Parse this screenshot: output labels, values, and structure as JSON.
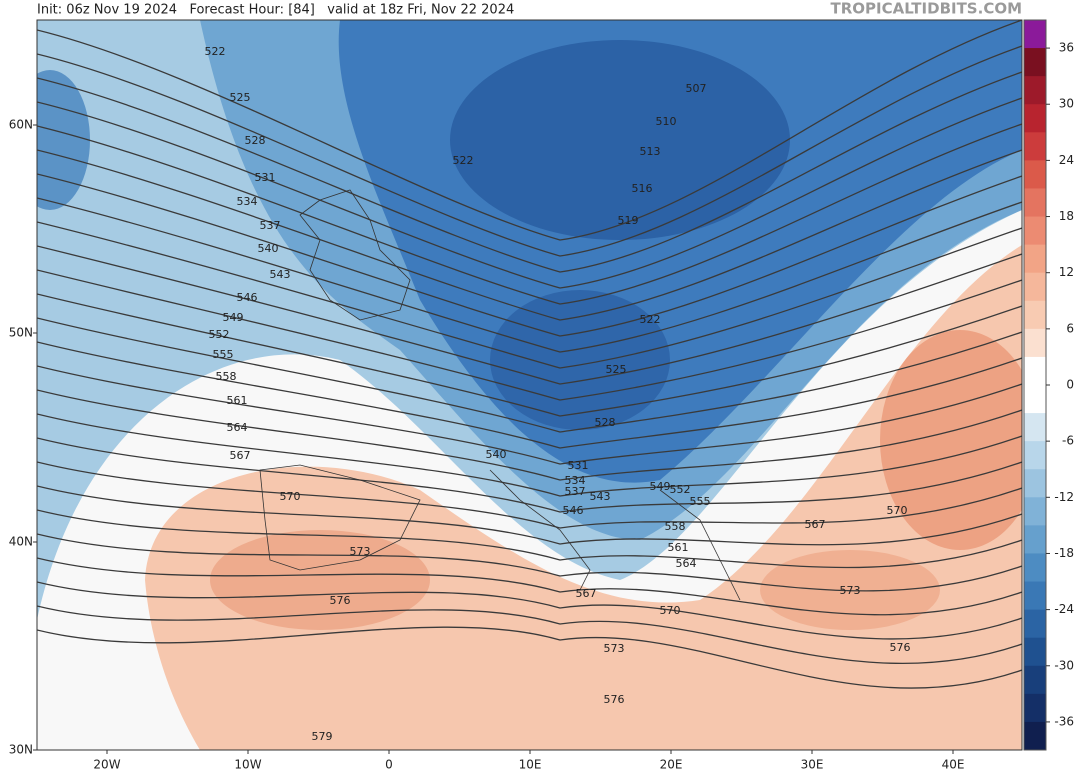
{
  "header": {
    "info": "Init: 06z Nov 19 2024   Forecast Hour: [84]   valid at 18z Fri, Nov 22 2024",
    "watermark": "TROPICALTIDBITS.COM"
  },
  "map": {
    "latitude_labels": [
      "60N",
      "50N",
      "40N",
      "30N"
    ],
    "longitude_labels": [
      "20W",
      "10W",
      "0",
      "10E",
      "20E",
      "30E",
      "40E"
    ],
    "contour_labels": [
      "522",
      "525",
      "528",
      "531",
      "534",
      "537",
      "540",
      "543",
      "546",
      "549",
      "552",
      "555",
      "558",
      "561",
      "564",
      "567",
      "570",
      "573",
      "576",
      "579",
      "522",
      "507",
      "510",
      "513",
      "516",
      "519",
      "522",
      "525",
      "528",
      "531",
      "534",
      "537",
      "540",
      "543",
      "546",
      "549",
      "552",
      "555",
      "558",
      "561",
      "564",
      "567",
      "570",
      "573",
      "576",
      "567",
      "570",
      "573",
      "576"
    ]
  },
  "colorbar": {
    "ticks": [
      36,
      30,
      24,
      18,
      12,
      6,
      0,
      -6,
      -12,
      -18,
      -24,
      -30,
      -36
    ]
  }
}
